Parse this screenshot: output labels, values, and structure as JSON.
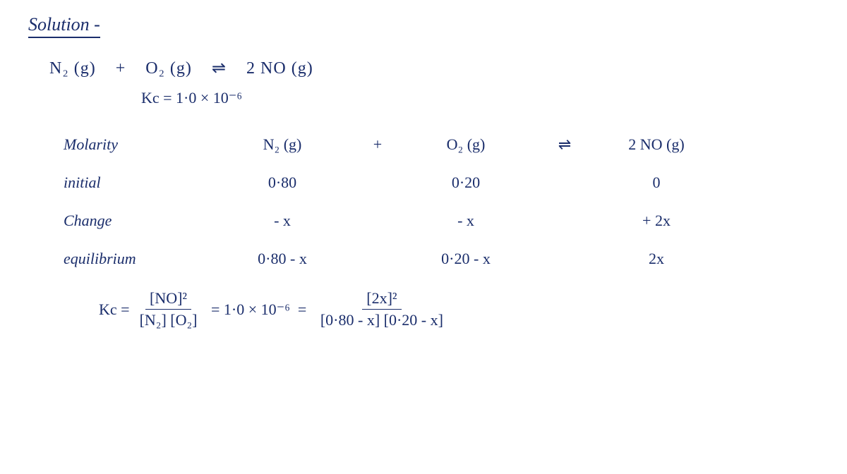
{
  "title": "Solution -",
  "equation": {
    "lhs_1": "N₂ (g)",
    "plus": "+",
    "lhs_2": "O₂ (g)",
    "arrow": "⇌",
    "rhs": "2 NO (g)"
  },
  "kc_value": "Kc = 1·0 × 10⁻⁶",
  "ice": {
    "header": {
      "label": "Molarity",
      "n2": "N₂ (g)",
      "plus": "+",
      "o2": "O₂ (g)",
      "arrow": "⇌",
      "no": "2 NO (g)"
    },
    "initial": {
      "label": "initial",
      "n2": "0·80",
      "o2": "0·20",
      "no": "0"
    },
    "change": {
      "label": "Change",
      "n2": "- x",
      "o2": "- x",
      "no": "+ 2x"
    },
    "equilibrium": {
      "label": "equilibrium",
      "n2": "0·80 - x",
      "o2": "0·20 - x",
      "no": "2x"
    }
  },
  "kc_expr": {
    "prefix": "Kc =",
    "frac1_num": "[NO]²",
    "frac1_den": "[N₂] [O₂]",
    "eq1": "= 1·0 × 10⁻⁶",
    "eq2": "=",
    "frac2_num": "[2x]²",
    "frac2_den": "[0·80 - x] [0·20 - x]"
  },
  "colors": {
    "ink": "#1a2d6b",
    "paper": "#ffffff"
  }
}
